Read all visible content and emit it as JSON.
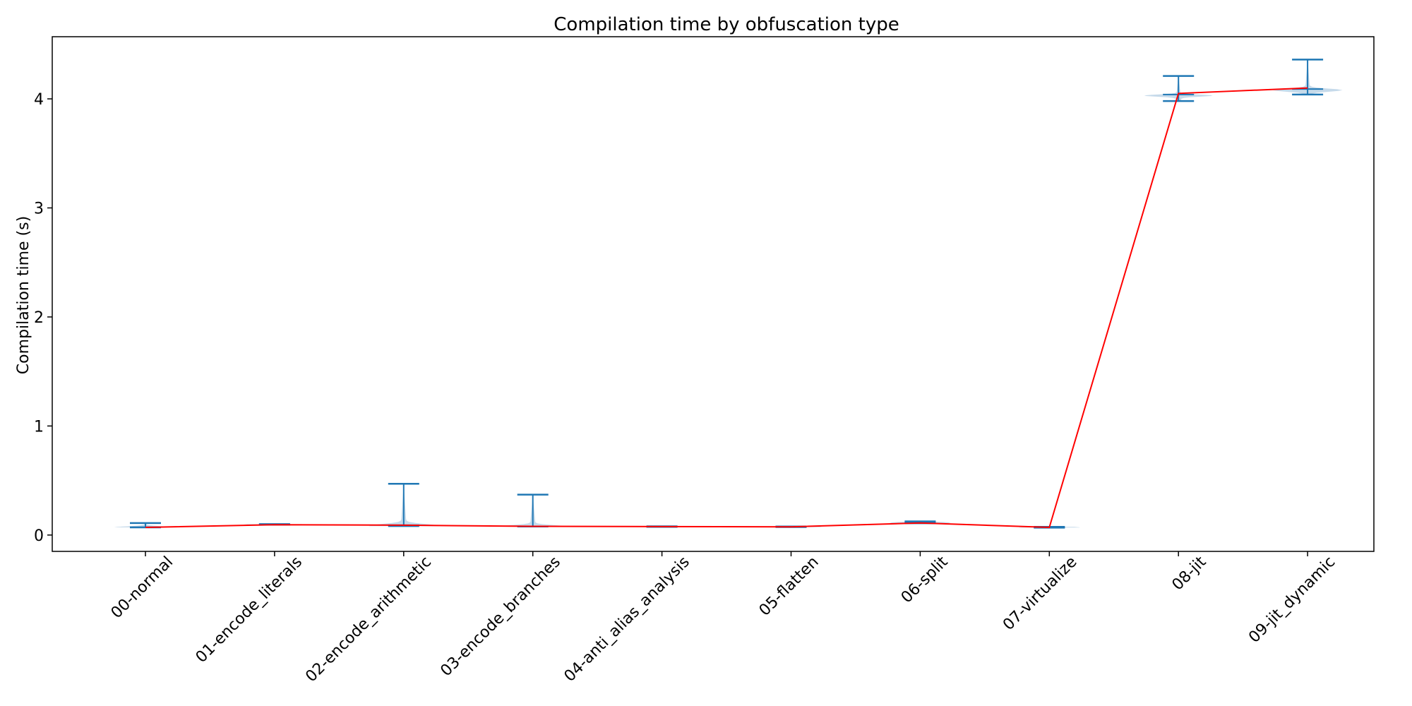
{
  "chart_data": {
    "type": "violin",
    "title": "Compilation time by obfuscation type",
    "xlabel": "",
    "ylabel": "Compilation time (s)",
    "ylim": [
      -0.15,
      4.57
    ],
    "yticks": [
      0,
      1,
      2,
      3,
      4
    ],
    "categories": [
      "00-normal",
      "01-encode_literals",
      "02-encode_arithmetic",
      "03-encode_branches",
      "04-anti_alias_analysis",
      "05-flatten",
      "06-split",
      "07-virtualize",
      "08-jit",
      "09-jit_dynamic"
    ],
    "series": [
      {
        "kind": "violin",
        "min": [
          0.07,
          0.095,
          0.082,
          0.078,
          0.075,
          0.073,
          0.108,
          0.068,
          3.98,
          4.04
        ],
        "max": [
          0.11,
          0.1,
          0.47,
          0.37,
          0.08,
          0.078,
          0.125,
          0.075,
          4.21,
          4.36
        ],
        "median": [
          0.072,
          0.097,
          0.09,
          0.08,
          0.077,
          0.075,
          0.115,
          0.07,
          4.04,
          4.09
        ],
        "mode": [
          0.07,
          0.097,
          0.085,
          0.078,
          0.077,
          0.075,
          0.113,
          0.07,
          4.03,
          4.08
        ]
      },
      {
        "kind": "line",
        "values": [
          0.07,
          0.095,
          0.09,
          0.08,
          0.077,
          0.075,
          0.11,
          0.07,
          4.05,
          4.1
        ]
      }
    ],
    "grid": false,
    "colors": {
      "violin_body": "#b3cde3",
      "violin_edge": "#1f77b4",
      "line": "#ff0000"
    }
  }
}
